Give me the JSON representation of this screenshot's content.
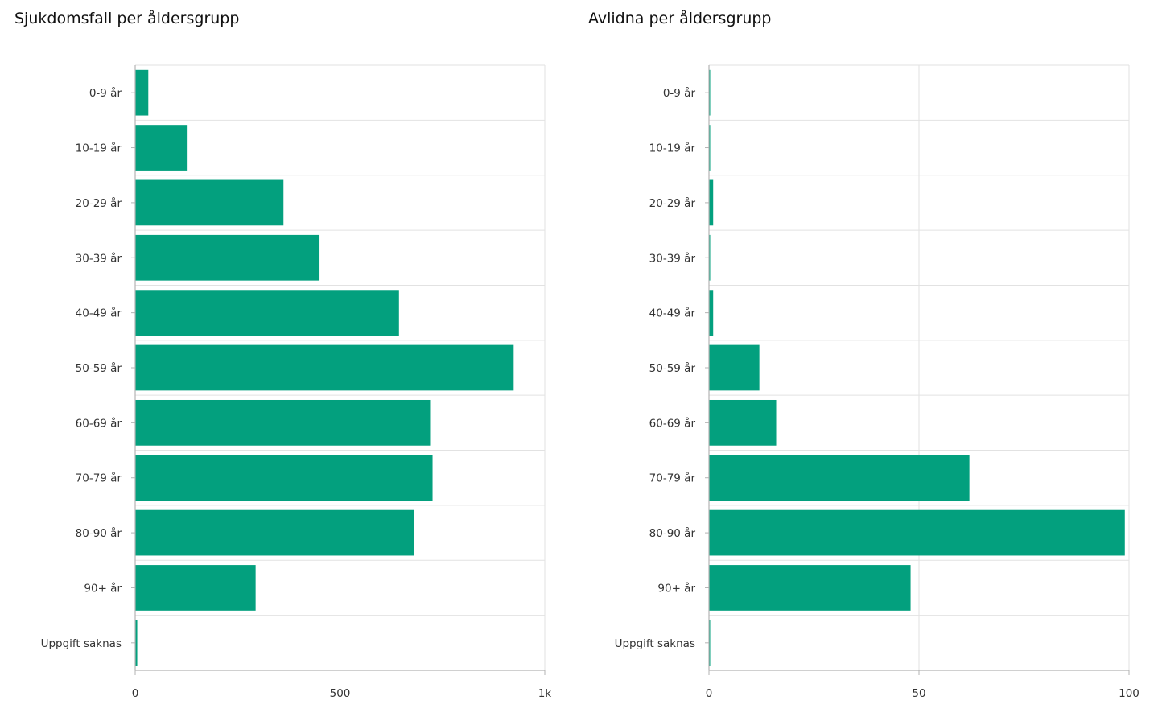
{
  "chart_data": [
    {
      "type": "bar",
      "orientation": "horizontal",
      "title": "Sjukdomsfall per åldersgrupp",
      "categories": [
        "0-9 år",
        "10-19 år",
        "20-29 år",
        "30-39 år",
        "40-49 år",
        "50-59 år",
        "60-69 år",
        "70-79 år",
        "80-90 år",
        "90+ år",
        "Uppgift saknas"
      ],
      "values": [
        32,
        126,
        362,
        450,
        644,
        924,
        720,
        726,
        680,
        294,
        5
      ],
      "xlim": [
        0,
        1000
      ],
      "ticks": [
        0,
        500,
        1000
      ],
      "tick_labels": [
        "0",
        "500",
        "1k"
      ],
      "grid": true,
      "xlabel": "",
      "ylabel": ""
    },
    {
      "type": "bar",
      "orientation": "horizontal",
      "title": "Avlidna per åldersgrupp",
      "categories": [
        "0-9 år",
        "10-19 år",
        "20-29 år",
        "30-39 år",
        "40-49 år",
        "50-59 år",
        "60-69 år",
        "70-79 år",
        "80-90 år",
        "90+ år",
        "Uppgift saknas"
      ],
      "values": [
        0,
        0,
        1,
        0,
        1,
        12,
        16,
        62,
        99,
        48,
        0
      ],
      "xlim": [
        0,
        100
      ],
      "ticks": [
        0,
        50,
        100
      ],
      "tick_labels": [
        "0",
        "50",
        "100"
      ],
      "grid": true,
      "xlabel": "",
      "ylabel": ""
    }
  ],
  "colors": {
    "bar": "#03a07e",
    "grid": "#e2e2e2",
    "axis": "#b3b3b3",
    "text": "#333333"
  }
}
